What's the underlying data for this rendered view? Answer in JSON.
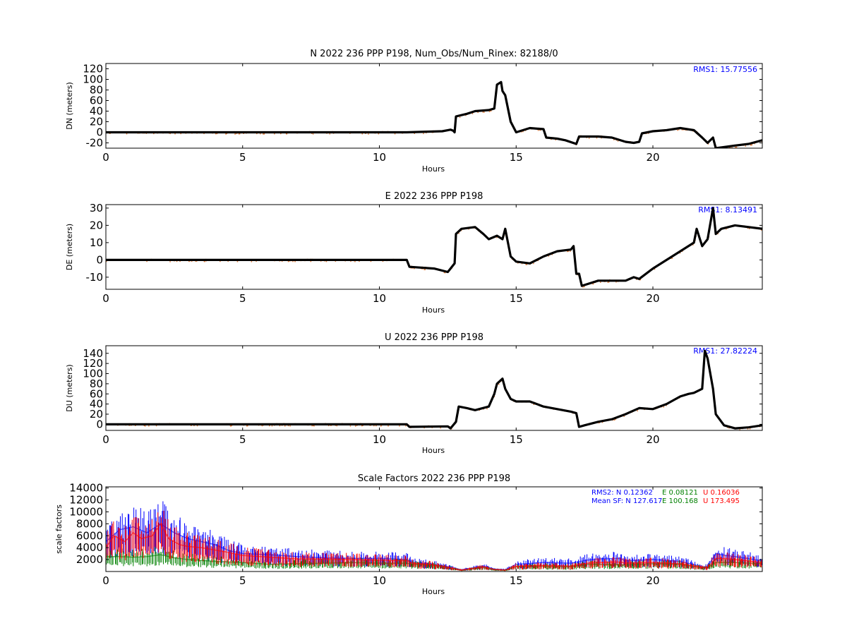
{
  "colors": {
    "track": "#000000",
    "track_scatter": "#e07b39",
    "north": "#0000ff",
    "east": "#008000",
    "up": "#ff0000",
    "rms_text": "#0000ff"
  },
  "chart_data": [
    {
      "type": "scatter",
      "title": "N 2022 236 PPP  P198, Num_Obs/Num_Rinex: 82188/0",
      "xlabel": "Hours",
      "ylabel": "DN (meters)",
      "xlim": [
        0,
        24
      ],
      "ylim": [
        -30,
        130
      ],
      "xticks": [
        0,
        5,
        10,
        15,
        20
      ],
      "yticks": [
        -20,
        0,
        20,
        40,
        60,
        80,
        100,
        120
      ],
      "annotation": "RMS1: 15.77556",
      "series": [
        {
          "x": [
            0,
            11,
            12.3,
            12.6,
            12.7,
            12.75,
            12.8,
            13.2,
            13.5,
            14.0,
            14.2,
            14.3,
            14.45,
            14.5,
            14.6,
            14.8,
            15.0,
            15.5,
            16.0,
            16.1,
            16.5,
            16.8,
            17.2,
            17.3,
            18.0,
            18.5,
            19.0,
            19.3,
            19.5,
            19.6,
            20.0,
            20.5,
            21.0,
            21.5,
            21.8,
            22.0,
            22.2,
            22.3,
            23.0,
            23.5,
            24.0
          ],
          "y": [
            0,
            0,
            2,
            5,
            3,
            0,
            30,
            35,
            40,
            42,
            45,
            90,
            95,
            78,
            70,
            20,
            0,
            8,
            6,
            -10,
            -12,
            -15,
            -22,
            -8,
            -8,
            -10,
            -18,
            -20,
            -18,
            -2,
            2,
            4,
            8,
            4,
            -10,
            -20,
            -10,
            -30,
            -25,
            -22,
            -15
          ]
        }
      ]
    },
    {
      "type": "scatter",
      "title": "E 2022 236 PPP  P198",
      "xlabel": "Hours",
      "ylabel": "DE (meters)",
      "xlim": [
        0,
        24
      ],
      "ylim": [
        -17,
        32
      ],
      "xticks": [
        0,
        5,
        10,
        15,
        20
      ],
      "yticks": [
        -10,
        0,
        10,
        20,
        30
      ],
      "annotation": "RMS1: 8.13491",
      "series": [
        {
          "x": [
            0,
            11,
            11.1,
            12.0,
            12.5,
            12.6,
            12.75,
            12.8,
            13.0,
            13.5,
            13.8,
            14.0,
            14.3,
            14.5,
            14.6,
            14.8,
            15.0,
            15.5,
            16.0,
            16.5,
            17.0,
            17.1,
            17.2,
            17.3,
            17.4,
            18.0,
            19.0,
            19.3,
            19.5,
            20.0,
            21.0,
            21.5,
            21.6,
            21.8,
            22.0,
            22.2,
            22.3,
            22.5,
            23.0,
            24.0
          ],
          "y": [
            0,
            0,
            -4,
            -5,
            -7,
            -5,
            -2,
            15,
            18,
            19,
            15,
            12,
            14,
            12,
            18,
            2,
            -1,
            -2,
            2,
            5,
            6,
            8,
            -8,
            -8,
            -15,
            -12,
            -12,
            -10,
            -11,
            -5,
            5,
            10,
            18,
            8,
            12,
            30,
            15,
            18,
            20,
            18
          ]
        }
      ]
    },
    {
      "type": "scatter",
      "title": "U 2022 236 PPP  P198",
      "xlabel": "Hours",
      "ylabel": "DU (meters)",
      "xlim": [
        0,
        24
      ],
      "ylim": [
        -12,
        155
      ],
      "xticks": [
        0,
        5,
        10,
        15,
        20
      ],
      "yticks": [
        0,
        20,
        40,
        60,
        80,
        100,
        120,
        140
      ],
      "annotation": "RMS1: 27.82224",
      "series": [
        {
          "x": [
            0,
            11,
            11.1,
            12.5,
            12.6,
            12.8,
            12.9,
            13.2,
            13.5,
            14.0,
            14.2,
            14.3,
            14.5,
            14.6,
            14.8,
            15.0,
            15.5,
            16.0,
            16.5,
            17.0,
            17.2,
            17.3,
            17.5,
            18.0,
            18.5,
            19.0,
            19.5,
            20.0,
            20.5,
            21.0,
            21.3,
            21.5,
            21.8,
            21.9,
            22.0,
            22.2,
            22.3,
            22.6,
            23.0,
            23.5,
            24.0
          ],
          "y": [
            0,
            0,
            -5,
            -4,
            -8,
            5,
            35,
            32,
            28,
            35,
            60,
            80,
            90,
            70,
            50,
            45,
            45,
            35,
            30,
            25,
            22,
            -5,
            -2,
            5,
            10,
            20,
            32,
            30,
            40,
            55,
            60,
            62,
            70,
            145,
            130,
            70,
            20,
            -2,
            -8,
            -6,
            -2
          ]
        }
      ]
    },
    {
      "type": "scatter",
      "title": "Scale Factors 2022 236 PPP  P198",
      "xlabel": "Hours",
      "ylabel": "scale factors",
      "xlim": [
        0,
        24
      ],
      "ylim": [
        0,
        14200
      ],
      "xticks": [
        0,
        5,
        10,
        15,
        20
      ],
      "yticks": [
        2000,
        4000,
        6000,
        8000,
        10000,
        12000,
        14000
      ],
      "legend_placement": "top-right",
      "legend_lines": [
        [
          {
            "text": "RMS2: N  0.12362",
            "color": "#0000ff"
          },
          {
            "text": "E  0.08121",
            "color": "#008000"
          },
          {
            "text": "U  0.16036",
            "color": "#ff0000"
          }
        ],
        [
          {
            "text": "Mean SF: N 127.617",
            "color": "#0000ff"
          },
          {
            "text": "E 100.168",
            "color": "#008000"
          },
          {
            "text": "U  173.495",
            "color": "#ff0000"
          }
        ]
      ],
      "series": [
        {
          "name": "N",
          "color": "#0000ff",
          "x": [
            0,
            0.5,
            1.0,
            1.5,
            2.0,
            2.5,
            3.0,
            3.5,
            4.0,
            4.5,
            5.0,
            6.0,
            7.0,
            8.0,
            9.0,
            10.0,
            11.0,
            11.2,
            12.0,
            12.5,
            13.0,
            13.8,
            14.2,
            14.6,
            15.0,
            16.0,
            17.0,
            17.6,
            18.0,
            18.8,
            19.0,
            20.0,
            21.0,
            21.8,
            22.0,
            22.3,
            22.5,
            23.0,
            24.0
          ],
          "y": [
            5000,
            7000,
            7500,
            6500,
            8000,
            6500,
            5500,
            5000,
            4500,
            3500,
            3000,
            2800,
            2500,
            2300,
            2200,
            2200,
            2000,
            1500,
            1200,
            800,
            300,
            900,
            400,
            300,
            1200,
            1500,
            1400,
            1900,
            2100,
            2200,
            1800,
            2000,
            1700,
            800,
            800,
            3000,
            2800,
            2500,
            1800
          ]
        },
        {
          "name": "E",
          "color": "#008000",
          "x": [
            0,
            0.5,
            1.0,
            1.5,
            2.0,
            2.5,
            3.0,
            4.0,
            5.0,
            6.0,
            7.0,
            8.0,
            9.0,
            10.0,
            11.0,
            11.2,
            12.0,
            12.5,
            13.0,
            13.8,
            14.2,
            14.6,
            15.0,
            16.0,
            17.0,
            17.6,
            18.0,
            19.0,
            20.0,
            21.0,
            21.8,
            22.0,
            22.3,
            23.0,
            24.0
          ],
          "y": [
            2500,
            2500,
            2400,
            2500,
            2800,
            2300,
            2000,
            1700,
            1500,
            1200,
            1300,
            1400,
            1500,
            1400,
            1400,
            1200,
            1000,
            700,
            200,
            700,
            300,
            200,
            800,
            900,
            800,
            1200,
            1200,
            1100,
            1300,
            1200,
            600,
            700,
            1500,
            1500,
            1300
          ]
        },
        {
          "name": "U",
          "color": "#ff0000",
          "x": [
            0,
            0.3,
            0.7,
            1.0,
            1.3,
            1.7,
            2.0,
            2.3,
            2.7,
            3.0,
            3.5,
            4.0,
            4.5,
            5.0,
            6.0,
            7.0,
            8.0,
            9.0,
            10.0,
            11.0,
            11.2,
            12.0,
            12.5,
            13.0,
            13.8,
            14.2,
            14.6,
            15.0,
            16.0,
            17.0,
            17.6,
            18.0,
            18.8,
            19.0,
            20.0,
            21.0,
            21.8,
            22.0,
            22.3,
            22.5,
            23.0,
            24.0
          ],
          "y": [
            4000,
            6000,
            5000,
            6500,
            5500,
            6000,
            8000,
            5500,
            4500,
            4200,
            4000,
            3600,
            3200,
            2700,
            2400,
            2100,
            2100,
            2000,
            1900,
            1800,
            1400,
            1100,
            700,
            250,
            800,
            350,
            250,
            900,
            1000,
            900,
            1400,
            1500,
            1600,
            1400,
            1500,
            1300,
            700,
            700,
            2200,
            2200,
            2000,
            1500
          ]
        }
      ]
    }
  ]
}
